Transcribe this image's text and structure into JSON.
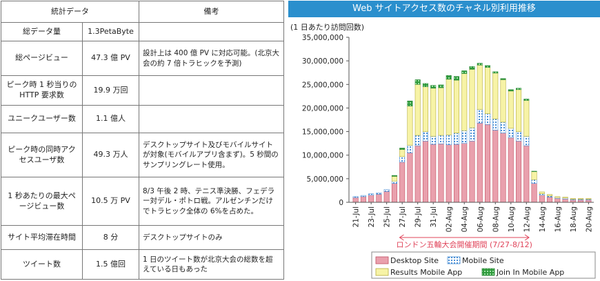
{
  "table": {
    "headers": [
      "統計データ",
      "",
      "備考"
    ],
    "rows": [
      {
        "item": "総データ量",
        "value": "1.3PetaByte",
        "note": ""
      },
      {
        "item": "総ページビュー",
        "value": "47.3 億 PV",
        "note": "設計上は 400 億 PV に対応可能。(北京大会の約 7 倍トラヒックを予測)"
      },
      {
        "item": "ピーク時 1 秒当りの HTTP 要求数",
        "value": "19.9 万回",
        "note": ""
      },
      {
        "item": "ユニークユーザー数",
        "value": "1.1 億人",
        "note": ""
      },
      {
        "item": "ピーク時の同時アクセスユーザ数",
        "value": "49.3 万人",
        "note": "デスクトップサイト及びモバイルサイトが対象(モバイルアプリ含まず)。5 秒間のサンプリングレート使用。"
      },
      {
        "item": "1 秒あたりの最大ページビュー数",
        "value": "10.5 万 PV",
        "note": "8/3 午後 2 時、テニス準決勝、フェデラー対デル・ポトロ戦。アルゼンチンだけでトラヒック全体の 6%を占めた。"
      },
      {
        "item": "サイト平均滞在時間",
        "value": "8 分",
        "note": "デスクトップサイトのみ"
      },
      {
        "item": "ツイート数",
        "value": "1.5 億回",
        "note": "1 日のツイート数が北京大会の総数を超えている日もあった"
      }
    ]
  },
  "chart_data": {
    "type": "bar",
    "stacked": true,
    "title": "Web サイトアクセス数のチャネル別利用推移",
    "ylabel": "(1 日あたり訪問回数)",
    "ylim": [
      0,
      35000000
    ],
    "yticks": [
      "0",
      "5,000,000",
      "10,000,000",
      "15,000,000",
      "20,000,000",
      "25,000,000",
      "30,000,000",
      "35,000,000"
    ],
    "categories": [
      "21-Jul",
      "22-Jul",
      "23-Jul",
      "24-Jul",
      "25-Jul",
      "26-Jul",
      "27-Jul",
      "28-Jul",
      "29-Jul",
      "30-Jul",
      "31-Jul",
      "01-Aug",
      "02-Aug",
      "03-Aug",
      "04-Aug",
      "05-Aug",
      "06-Aug",
      "07-Aug",
      "08-Aug",
      "09-Aug",
      "10-Aug",
      "11-Aug",
      "12-Aug",
      "13-Aug",
      "14-Aug",
      "15-Aug",
      "16-Aug",
      "17-Aug",
      "18-Aug",
      "19-Aug",
      "20-Aug"
    ],
    "xtick_labels": [
      "21-Jul",
      "23-Jul",
      "25-Jul",
      "27-Jul",
      "29-Jul",
      "31-Jul",
      "02-Aug",
      "04-Aug",
      "06-Aug",
      "08-Aug",
      "10-Aug",
      "12-Aug",
      "14-Aug",
      "16-Aug",
      "18-Aug",
      "20-Aug"
    ],
    "series": [
      {
        "name": "Desktop Site",
        "color": "#e9a0ad",
        "values": [
          1000000,
          1200000,
          1500000,
          1700000,
          2300000,
          4000000,
          8500000,
          10500000,
          12000000,
          13000000,
          12300000,
          12400000,
          12200000,
          12300000,
          12500000,
          13000000,
          16800000,
          16500000,
          15300000,
          14700000,
          13700000,
          13000000,
          12000000,
          4000000,
          1500000,
          1100000,
          800000,
          700000,
          500000,
          500000,
          500000
        ]
      },
      {
        "name": "Mobile Site",
        "color": "#a8cdee",
        "values": [
          200000,
          250000,
          300000,
          300000,
          400000,
          500000,
          1200000,
          1600000,
          2200000,
          2000000,
          1700000,
          1800000,
          2100000,
          2400000,
          2700000,
          2800000,
          2900000,
          2300000,
          2400000,
          2300000,
          2000000,
          2000000,
          2000000,
          800000,
          300000,
          250000,
          200000,
          200000,
          150000,
          150000,
          150000
        ]
      },
      {
        "name": "Results Mobile App",
        "color": "#f7f3a6",
        "values": [
          0,
          0,
          0,
          0,
          0,
          1000000,
          1500000,
          8300000,
          10800000,
          9500000,
          10200000,
          10100000,
          11800000,
          11200000,
          12100000,
          12400000,
          9400000,
          9800000,
          9700000,
          9000000,
          7900000,
          8900000,
          7600000,
          1700000,
          400000,
          300000,
          200000,
          200000,
          150000,
          150000,
          150000
        ]
      },
      {
        "name": "Join In Mobile App",
        "color": "#4cae55",
        "values": [
          0,
          0,
          0,
          0,
          0,
          200000,
          300000,
          1100000,
          1000000,
          700000,
          600000,
          600000,
          800000,
          800000,
          600000,
          600000,
          400000,
          400000,
          300000,
          250000,
          300000,
          300000,
          300000,
          100000,
          0,
          0,
          0,
          0,
          0,
          0,
          0
        ]
      }
    ],
    "annotation": {
      "text": "ロンドン五輪大会開催期間 (7/27-8/12)",
      "from": "27-Jul",
      "to": "12-Aug"
    },
    "legend_position": "bottom",
    "grid": false
  }
}
